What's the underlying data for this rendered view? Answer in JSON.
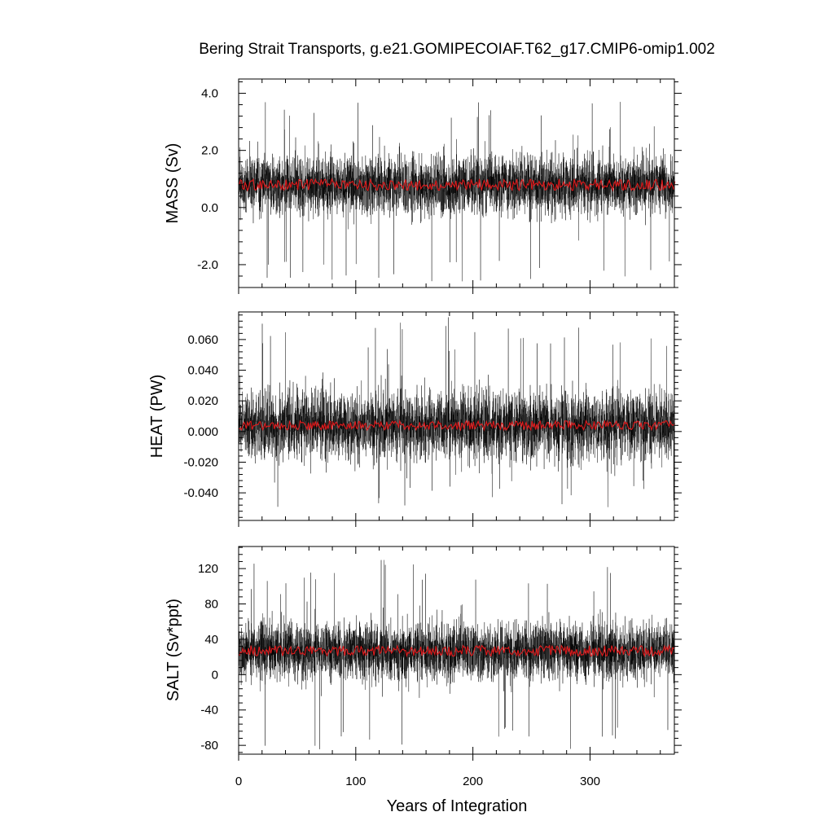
{
  "figure": {
    "title": "Bering Strait Transports, g.e21.GOMIPECOIAF.T62_g17.CMIP6-omip1.002",
    "xlabel": "Years of Integration"
  },
  "chart_data": [
    {
      "type": "line",
      "name": "mass",
      "ylabel": "MASS (Sv)",
      "xlim": [
        0,
        372
      ],
      "ylim": [
        -2.8,
        4.5
      ],
      "yticks": [
        -2.0,
        0.0,
        2.0,
        4.0
      ],
      "ytick_labels": [
        "-2.0",
        "0.0",
        "2.0",
        "4.0"
      ],
      "minor_step": 0.4,
      "xticks": [
        0,
        100,
        200,
        300
      ],
      "xtick_labels": [
        "0",
        "100",
        "200",
        "300"
      ],
      "series": [
        {
          "role": "monthly",
          "color": "#000000",
          "mean": 0.8,
          "sd": 0.5,
          "spike_up": 3.9,
          "spike_down": -2.6
        },
        {
          "role": "annual mean",
          "color": "#e0191b",
          "mean": 0.8,
          "amplitude": 0.2
        }
      ]
    },
    {
      "type": "line",
      "name": "heat",
      "ylabel": "HEAT (PW)",
      "xlim": [
        0,
        372
      ],
      "ylim": [
        -0.058,
        0.078
      ],
      "yticks": [
        -0.04,
        -0.02,
        0.0,
        0.02,
        0.04,
        0.06
      ],
      "ytick_labels": [
        "-0.040",
        "-0.020",
        "0.000",
        "0.020",
        "0.040",
        "0.060"
      ],
      "minor_step": 0.004,
      "xticks": [
        0,
        100,
        200,
        300
      ],
      "xtick_labels": [
        "",
        "",
        "",
        ""
      ],
      "series": [
        {
          "role": "monthly",
          "color": "#000000",
          "mean": 0.004,
          "sd": 0.011,
          "spike_up": 0.075,
          "spike_down": -0.05
        },
        {
          "role": "annual mean",
          "color": "#e0191b",
          "mean": 0.004,
          "amplitude": 0.003
        }
      ]
    },
    {
      "type": "line",
      "name": "salt",
      "ylabel": "SALT (Sv*ppt)",
      "xlim": [
        0,
        372
      ],
      "ylim": [
        -90,
        145
      ],
      "yticks": [
        -80,
        -40,
        0,
        40,
        80,
        120
      ],
      "ytick_labels": [
        "-80",
        "-40",
        "0",
        "40",
        "80",
        "120"
      ],
      "minor_step": 8,
      "xticks": [
        0,
        100,
        200,
        300
      ],
      "xtick_labels": [
        "0",
        "100",
        "200",
        "300"
      ],
      "series": [
        {
          "role": "monthly",
          "color": "#000000",
          "mean": 27,
          "sd": 16,
          "spike_up": 130,
          "spike_down": -85
        },
        {
          "role": "annual mean",
          "color": "#e0191b",
          "mean": 27,
          "amplitude": 6
        }
      ]
    }
  ]
}
